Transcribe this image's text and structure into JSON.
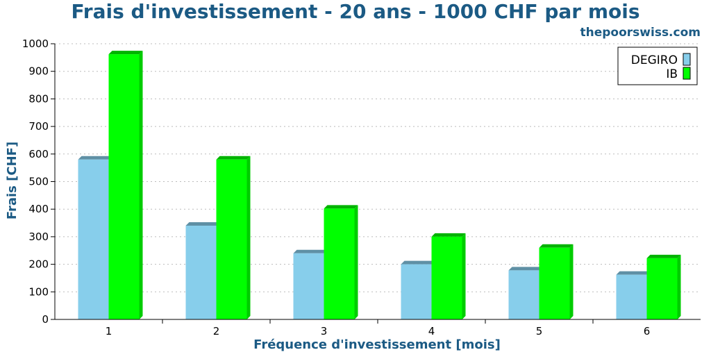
{
  "chart_data": {
    "type": "bar",
    "title": "Frais d'investissement - 20 ans - 1000 CHF par mois",
    "source": "thepoorswiss.com",
    "xlabel": "Fréquence d'investissement [mois]",
    "ylabel": "Frais [CHF]",
    "categories": [
      "1",
      "2",
      "3",
      "4",
      "5",
      "6"
    ],
    "ylim": [
      0,
      1000
    ],
    "yticks": [
      "0",
      "100",
      "200",
      "300",
      "400",
      "500",
      "600",
      "700",
      "800",
      "900",
      "1000"
    ],
    "grid": true,
    "legend_position": "top-right",
    "series": [
      {
        "name": "DEGIRO",
        "color": "#87ceeb",
        "values": [
          580,
          340,
          240,
          200,
          178,
          162
        ]
      },
      {
        "name": "IB",
        "color": "#00ff00",
        "values": [
          962,
          580,
          402,
          300,
          260,
          222
        ]
      }
    ]
  }
}
